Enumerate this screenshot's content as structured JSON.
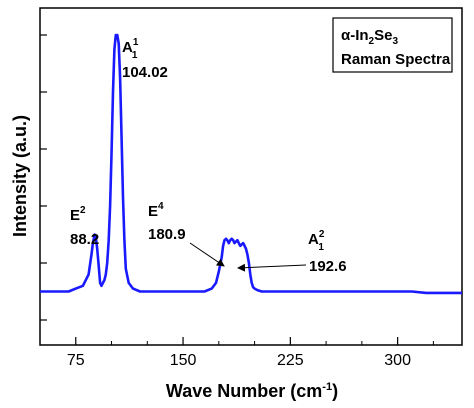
{
  "chart_data": {
    "type": "line",
    "title": "",
    "xlabel": "Wave Number (cm-1)",
    "ylabel": "Intensity (a.u.)",
    "xlim": [
      50,
      345
    ],
    "ylim": [
      0,
      1.0
    ],
    "xticks": [
      75,
      150,
      225,
      300
    ],
    "xtick_labels": [
      "75",
      "150",
      "225",
      "300"
    ],
    "grid": false,
    "legend": {
      "position": "top-right",
      "line1_prefix": "α-In",
      "line1_sub": "2",
      "line1_mid": "Se",
      "line1_sub2": "3",
      "line2": "Raman Spectra"
    },
    "series": [
      {
        "color": "#1a1aff",
        "x": [
          50,
          60,
          70,
          75,
          80,
          84,
          86,
          87,
          88,
          88.2,
          89,
          90,
          91,
          92,
          93,
          94,
          95,
          96,
          97,
          98,
          99,
          100,
          101,
          102,
          103,
          104.02,
          105,
          106,
          107,
          108,
          109,
          110,
          112,
          115,
          120,
          130,
          140,
          150,
          160,
          165,
          170,
          173,
          175,
          177,
          178,
          179,
          180,
          180.9,
          182,
          183,
          184,
          185,
          186,
          187,
          188,
          189,
          190,
          191,
          192,
          192.6,
          193,
          194,
          195,
          196,
          197,
          198,
          199,
          200,
          202,
          205,
          210,
          220,
          230,
          240,
          250,
          260,
          270,
          280,
          290,
          300,
          310,
          320,
          330,
          345
        ],
        "y": [
          0.1,
          0.1,
          0.1,
          0.11,
          0.12,
          0.16,
          0.23,
          0.27,
          0.295,
          0.3,
          0.29,
          0.25,
          0.19,
          0.13,
          0.12,
          0.13,
          0.14,
          0.16,
          0.2,
          0.28,
          0.4,
          0.58,
          0.8,
          0.95,
          1.0,
          1.0,
          0.97,
          0.85,
          0.65,
          0.43,
          0.28,
          0.18,
          0.13,
          0.11,
          0.1,
          0.1,
          0.1,
          0.1,
          0.1,
          0.1,
          0.11,
          0.13,
          0.17,
          0.22,
          0.26,
          0.28,
          0.285,
          0.28,
          0.27,
          0.28,
          0.285,
          0.28,
          0.27,
          0.275,
          0.28,
          0.27,
          0.26,
          0.265,
          0.27,
          0.265,
          0.26,
          0.25,
          0.23,
          0.2,
          0.16,
          0.13,
          0.115,
          0.11,
          0.105,
          0.1,
          0.1,
          0.1,
          0.1,
          0.1,
          0.1,
          0.1,
          0.1,
          0.1,
          0.1,
          0.1,
          0.1,
          0.095,
          0.095,
          0.095
        ]
      }
    ],
    "annotations": [
      {
        "label": "E",
        "sup": "2",
        "value": "88.2"
      },
      {
        "label": "A",
        "sup": "1",
        "sub": "1",
        "value": "104.02"
      },
      {
        "label": "E",
        "sup": "4",
        "value": "180.9"
      },
      {
        "label": "A",
        "sup": "2",
        "sub": "1",
        "value": "192.6"
      }
    ]
  },
  "axis_title_parts": {
    "x_main": "Wave Number (cm",
    "x_sup": "-1",
    "x_close": ")"
  },
  "colors": {
    "line": "#1a1aff",
    "axis": "#000000"
  }
}
